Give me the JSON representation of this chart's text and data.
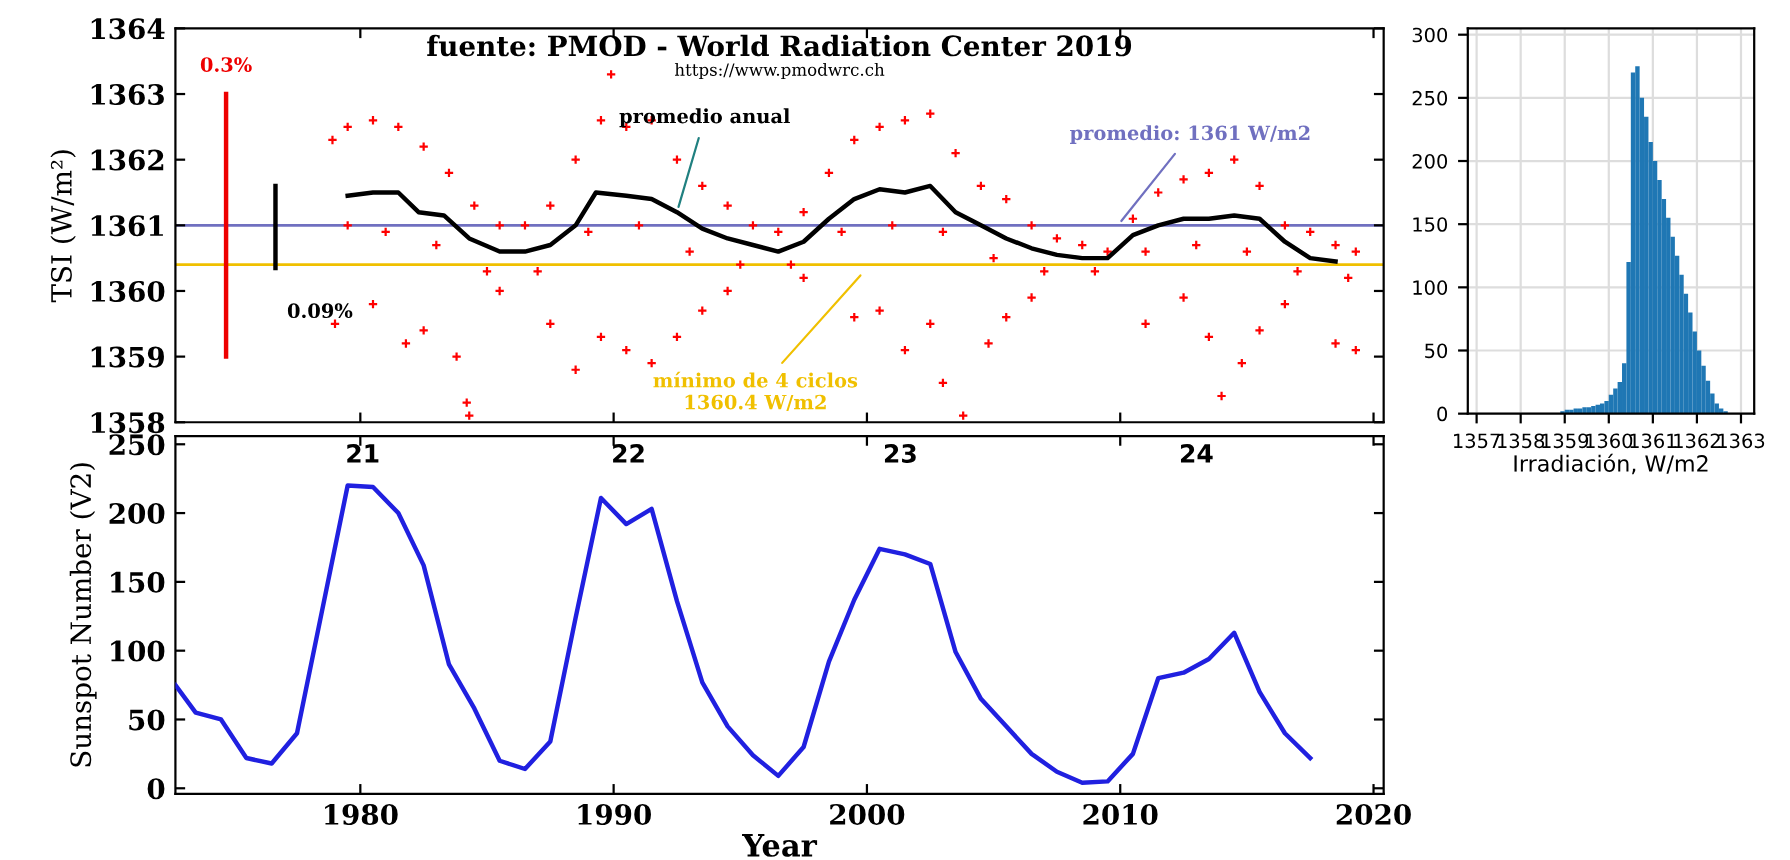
{
  "chart_data": [
    {
      "type": "scatter",
      "title": "fuente: PMOD - World Radiation Center 2019",
      "ylabel": "TSI (W/m²)",
      "xlim": [
        1972.7,
        2020.4
      ],
      "xticks": [
        1980,
        1990,
        2000,
        2010,
        2020
      ],
      "ylim": [
        1358,
        1364
      ],
      "yticks": [
        1358,
        1359,
        1360,
        1361,
        1362,
        1363,
        1364
      ],
      "tick_labels": "y",
      "grid": false,
      "annotations": [
        "https://www.pmodwrc.ch",
        {
          "text": "promedio anual",
          "x": 1992.5,
          "y": 1361.2
        },
        {
          "text": "0.3%",
          "x": 1974.7,
          "y": 1363
        },
        {
          "text": "0.09%",
          "x": 1976.65,
          "y": 1360.35
        }
      ],
      "ref_lines": [
        {
          "axis": "y",
          "value": 1361,
          "label": "promedio: 1361 W/m2",
          "color": "#7070c0"
        },
        {
          "axis": "y",
          "value": 1360.4,
          "label": "mínimo de 4 ciclos\n1360.4 W/m2",
          "color": "#f0c000"
        }
      ],
      "series": [
        {
          "type": "scatter",
          "color": "#ff0000",
          "marker": "cross",
          "x": [
            1978.9,
            1979.5,
            1980.5,
            1981.5,
            1982.5,
            1983.5,
            1984.5,
            1985.5,
            1986.5,
            1987.5,
            1988.5,
            1989.5,
            1989.9,
            1990.5,
            1991.5,
            1992.5,
            1993.5,
            1994.5,
            1995.5,
            1996.5,
            1997.5,
            1998.5,
            1999.5,
            2000.5,
            2001.5,
            2002.5,
            2003.5,
            2004.5,
            2005.5,
            2006.5,
            2007.5,
            2008.5,
            2009.5,
            2010.5,
            2011.5,
            2012.5,
            2013.5,
            2014.5,
            2015.5,
            2016.5,
            2017.5,
            2018.5,
            2019.3,
            1979.0,
            1980.5,
            1981.8,
            1982.5,
            1983.8,
            1984.2,
            1984.3,
            1985.5,
            1987.5,
            1988.5,
            1989.5,
            1990.5,
            1991.5,
            1992.5,
            1993.5,
            1994.5,
            1997.5,
            1999.5,
            2000.5,
            2001.5,
            2002.5,
            2003.0,
            2003.8,
            2004.8,
            2005.5,
            2006.5,
            2011.0,
            2012.5,
            2013.5,
            2014.0,
            2014.8,
            2015.5,
            2016.5,
            2018.5,
            2019.3,
            1979.5,
            1981.0,
            1983.0,
            1985.0,
            1987.0,
            1989.0,
            1991.0,
            1993.0,
            1995.0,
            1997.0,
            1999.0,
            2001.0,
            2003.0,
            2005.0,
            2007.0,
            2009.0,
            2011.0,
            2013.0,
            2015.0,
            2017.0,
            2019.0
          ],
          "values": [
            1362.3,
            1362.5,
            1362.6,
            1362.5,
            1362.2,
            1361.8,
            1361.3,
            1361.0,
            1361.0,
            1361.3,
            1362.0,
            1362.6,
            1363.3,
            1362.5,
            1362.6,
            1362.0,
            1361.6,
            1361.3,
            1361.0,
            1360.9,
            1361.2,
            1361.8,
            1362.3,
            1362.5,
            1362.6,
            1362.7,
            1362.1,
            1361.6,
            1361.4,
            1361.0,
            1360.8,
            1360.7,
            1360.6,
            1361.1,
            1361.5,
            1361.7,
            1361.8,
            1362.0,
            1361.6,
            1361.0,
            1360.9,
            1360.7,
            1360.6,
            1359.5,
            1359.8,
            1359.2,
            1359.4,
            1359.0,
            1358.3,
            1358.1,
            1360.0,
            1359.5,
            1358.8,
            1359.3,
            1359.1,
            1358.9,
            1359.3,
            1359.7,
            1360.0,
            1360.2,
            1359.6,
            1359.7,
            1359.1,
            1359.5,
            1358.6,
            1358.1,
            1359.2,
            1359.6,
            1359.9,
            1359.5,
            1359.9,
            1359.3,
            1358.4,
            1358.9,
            1359.4,
            1359.8,
            1359.2,
            1359.1,
            1361.0,
            1360.9,
            1360.7,
            1360.3,
            1360.3,
            1360.9,
            1361.0,
            1360.6,
            1360.4,
            1360.4,
            1360.9,
            1361.0,
            1360.9,
            1360.5,
            1360.3,
            1360.3,
            1360.6,
            1360.7,
            1360.6,
            1360.3,
            1360.2
          ]
        },
        {
          "type": "line",
          "color": "#000000",
          "marker": "none",
          "x": [
            1979.5,
            1980.5,
            1981.5,
            1982.3,
            1983.3,
            1984.3,
            1985.5,
            1986.5,
            1987.5,
            1988.5,
            1989.3,
            1990.5,
            1991.5,
            1992.5,
            1993.5,
            1994.5,
            1995.5,
            1996.5,
            1997.5,
            1998.5,
            1999.5,
            2000.5,
            2001.5,
            2002.5,
            2003.5,
            2004.5,
            2005.5,
            2006.5,
            2007.5,
            2008.5,
            2009.5,
            2010.5,
            2011.5,
            2012.5,
            2013.5,
            2014.5,
            2015.5,
            2016.5,
            2017.5,
            2018.5
          ],
          "values": [
            1361.45,
            1361.5,
            1361.5,
            1361.2,
            1361.15,
            1360.8,
            1360.6,
            1360.6,
            1360.7,
            1361.0,
            1361.5,
            1361.45,
            1361.4,
            1361.2,
            1360.95,
            1360.8,
            1360.7,
            1360.6,
            1360.75,
            1361.1,
            1361.4,
            1361.55,
            1361.5,
            1361.6,
            1361.2,
            1361.0,
            1360.8,
            1360.65,
            1360.55,
            1360.5,
            1360.5,
            1360.85,
            1361.0,
            1361.1,
            1361.1,
            1361.15,
            1361.1,
            1360.75,
            1360.5,
            1360.45
          ]
        },
        {
          "type": "line",
          "color": "#ee0000",
          "marker": "none",
          "x": [
            1974.7,
            1974.7
          ],
          "values": [
            1359,
            1363
          ]
        },
        {
          "type": "line",
          "color": "#000000",
          "marker": "none",
          "x": [
            1976.65,
            1976.65
          ],
          "values": [
            1360.35,
            1361.6
          ]
        }
      ]
    },
    {
      "type": "line",
      "xlabel": "Year",
      "ylabel": "Sunspot Number (V2)",
      "xlim": [
        1972.7,
        2020.4
      ],
      "ylim": [
        -4,
        256
      ],
      "xticks": [
        1980,
        1990,
        2000,
        2010,
        2020
      ],
      "yticks": [
        0,
        50,
        100,
        150,
        200,
        250
      ],
      "grid": false,
      "annotations": [
        "21",
        "22",
        "23",
        "24"
      ],
      "series": [
        {
          "color": "#2020e0",
          "marker": "none",
          "x": [
            1972.7,
            1973.5,
            1974.5,
            1975.5,
            1976.5,
            1977.5,
            1978.5,
            1979.5,
            1980.5,
            1981.5,
            1982.5,
            1983.5,
            1984.5,
            1985.5,
            1986.5,
            1987.5,
            1988.5,
            1989.5,
            1990.5,
            1991.5,
            1992.5,
            1993.5,
            1994.5,
            1995.5,
            1996.5,
            1997.5,
            1998.5,
            1999.5,
            2000.5,
            2001.5,
            2002.5,
            2003.5,
            2004.5,
            2005.5,
            2006.5,
            2007.5,
            2008.5,
            2009.5,
            2010.5,
            2011.5,
            2012.5,
            2013.5,
            2014.5,
            2015.5,
            2016.5,
            2017.5
          ],
          "values": [
            75,
            55,
            50,
            22,
            18,
            40,
            130,
            220,
            219,
            200,
            162,
            90,
            58,
            20,
            14,
            34,
            124,
            211,
            192,
            203,
            136,
            77,
            45,
            24,
            9,
            30,
            92,
            137,
            174,
            170,
            163,
            99,
            65,
            45,
            25,
            12,
            4,
            5,
            25,
            80,
            84,
            94,
            113,
            70,
            40,
            22
          ]
        }
      ]
    },
    {
      "type": "histogram",
      "xlabel": "Irradiación, W/m2",
      "color": "#1f77b4",
      "xlim": [
        1356.8,
        1363.3
      ],
      "ylim": [
        0,
        305
      ],
      "xticks": [
        1357,
        1358,
        1359,
        1360,
        1361,
        1362,
        1363
      ],
      "yticks": [
        0,
        50,
        100,
        150,
        200,
        250,
        300
      ],
      "grid": true,
      "bins": [
        1358.5,
        1358.6,
        1358.7,
        1358.8,
        1358.9,
        1359.0,
        1359.1,
        1359.2,
        1359.3,
        1359.4,
        1359.5,
        1359.6,
        1359.7,
        1359.8,
        1359.9,
        1360.0,
        1360.1,
        1360.2,
        1360.3,
        1360.4,
        1360.5,
        1360.6,
        1360.7,
        1360.8,
        1360.9,
        1361.0,
        1361.1,
        1361.2,
        1361.3,
        1361.4,
        1361.5,
        1361.6,
        1361.7,
        1361.8,
        1361.9,
        1362.0,
        1362.1,
        1362.2,
        1362.3,
        1362.4,
        1362.5,
        1362.6,
        1362.7,
        1362.8
      ],
      "values": [
        null,
        null,
        null,
        null,
        2,
        3,
        3,
        4,
        4,
        5,
        5,
        6,
        7,
        8,
        10,
        15,
        20,
        25,
        40,
        120,
        270,
        275,
        250,
        235,
        215,
        200,
        185,
        170,
        155,
        140,
        125,
        110,
        95,
        80,
        65,
        50,
        38,
        26,
        16,
        8,
        4,
        2,
        null
      ]
    }
  ]
}
